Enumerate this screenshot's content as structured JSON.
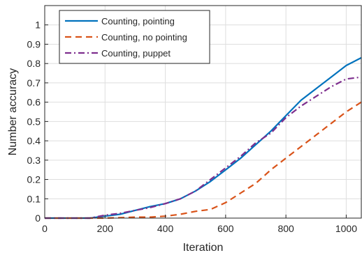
{
  "chart_data": {
    "type": "line",
    "xlabel": "Iteration",
    "ylabel": "Number accuracy",
    "xlim": [
      0,
      1050
    ],
    "ylim": [
      0,
      1.1
    ],
    "x_ticks": [
      "0",
      "200",
      "400",
      "600",
      "800",
      "1000"
    ],
    "y_ticks": [
      "0",
      "0.1",
      "0.2",
      "0.3",
      "0.4",
      "0.5",
      "0.6",
      "0.7",
      "0.8",
      "0.9",
      "1"
    ],
    "grid": true,
    "legend_position": "top-left",
    "series": [
      {
        "name": "Counting, pointing",
        "color": "#0072BD",
        "dash": "solid",
        "x": [
          0,
          150,
          200,
          250,
          300,
          350,
          400,
          450,
          500,
          550,
          600,
          650,
          700,
          750,
          800,
          850,
          900,
          950,
          1000,
          1050
        ],
        "y": [
          0.0,
          0.0,
          0.01,
          0.02,
          0.04,
          0.06,
          0.075,
          0.1,
          0.14,
          0.19,
          0.25,
          0.31,
          0.38,
          0.45,
          0.53,
          0.61,
          0.67,
          0.73,
          0.79,
          0.83
        ]
      },
      {
        "name": "Counting, no pointing",
        "color": "#D95319",
        "dash": "dashed",
        "x": [
          0,
          200,
          250,
          300,
          350,
          400,
          450,
          500,
          550,
          600,
          650,
          700,
          750,
          800,
          850,
          900,
          950,
          1000,
          1050
        ],
        "y": [
          0.0,
          0.0,
          0.002,
          0.005,
          0.005,
          0.01,
          0.02,
          0.035,
          0.045,
          0.08,
          0.13,
          0.18,
          0.25,
          0.31,
          0.37,
          0.43,
          0.49,
          0.55,
          0.6
        ]
      },
      {
        "name": "Counting, puppet",
        "color": "#7E2F8E",
        "dash": "dashdot",
        "x": [
          0,
          150,
          200,
          250,
          300,
          350,
          400,
          450,
          500,
          550,
          600,
          650,
          700,
          750,
          800,
          850,
          900,
          950,
          1000,
          1050
        ],
        "y": [
          0.0,
          0.0,
          0.015,
          0.025,
          0.04,
          0.055,
          0.075,
          0.1,
          0.14,
          0.2,
          0.26,
          0.32,
          0.39,
          0.44,
          0.52,
          0.58,
          0.63,
          0.68,
          0.72,
          0.73
        ]
      }
    ]
  }
}
